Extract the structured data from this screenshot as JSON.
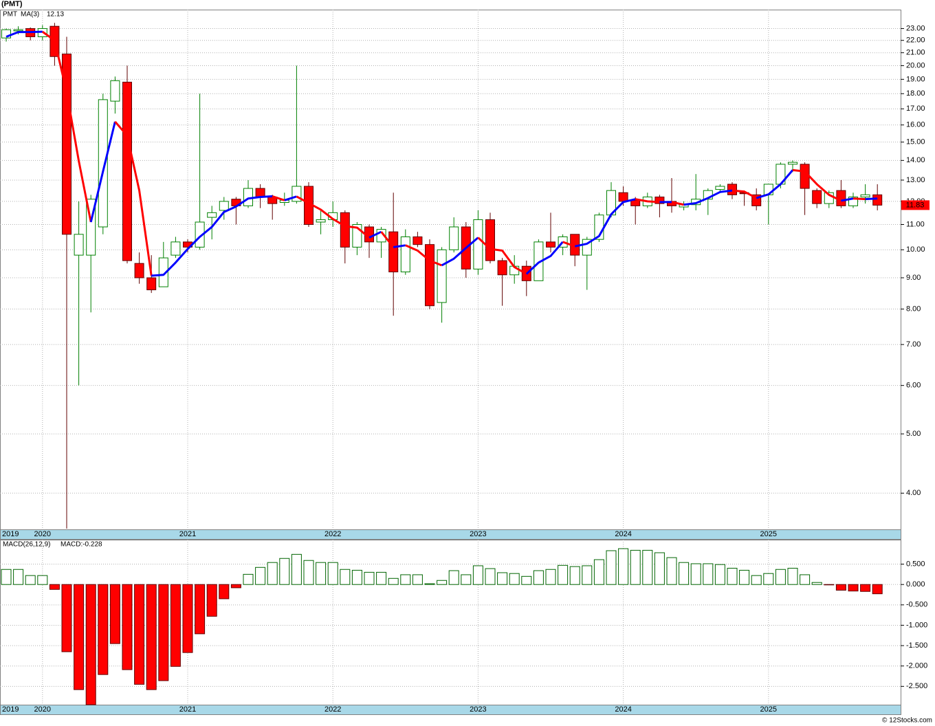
{
  "footer": "© 12Stocks.com",
  "chart_data": [
    {
      "type": "candlestick",
      "title": "(PMT)",
      "name": "PMT",
      "name_color": "#008000",
      "categories": [
        "2019",
        null,
        null,
        "2020",
        null,
        null,
        null,
        null,
        null,
        null,
        null,
        null,
        null,
        null,
        null,
        "2021",
        null,
        null,
        null,
        null,
        null,
        null,
        null,
        null,
        null,
        null,
        null,
        "2022",
        null,
        null,
        null,
        null,
        null,
        null,
        null,
        null,
        null,
        null,
        null,
        "2023",
        null,
        null,
        null,
        null,
        null,
        null,
        null,
        null,
        null,
        null,
        null,
        "2024",
        null,
        null,
        null,
        null,
        null,
        null,
        null,
        null,
        null,
        null,
        null,
        "2025",
        null,
        null,
        null,
        null,
        null,
        null,
        null,
        null,
        null
      ],
      "open": [
        22.2,
        22.8,
        23.0,
        22.3,
        23.2,
        20.9,
        9.8,
        9.8,
        10.9,
        17.5,
        18.8,
        9.5,
        9.0,
        8.7,
        9.8,
        10.3,
        10.1,
        11.3,
        11.6,
        12.1,
        11.8,
        12.6,
        12.2,
        11.95,
        12.0,
        12.7,
        11.1,
        11.2,
        11.5,
        10.1,
        10.9,
        10.3,
        10.7,
        9.2,
        10.5,
        10.2,
        8.2,
        10.0,
        10.9,
        9.3,
        11.2,
        9.6,
        9.1,
        9.4,
        8.9,
        10.3,
        10.1,
        10.6,
        9.8,
        10.4,
        11.4,
        12.4,
        12.05,
        11.8,
        12.2,
        12.0,
        11.75,
        11.85,
        12.1,
        12.55,
        12.8,
        12.4,
        12.3,
        12.3,
        12.8,
        13.8,
        13.8,
        12.5,
        11.9,
        12.5,
        11.8,
        12.2,
        12.3
      ],
      "high": [
        23.0,
        23.2,
        23.1,
        23.3,
        23.5,
        22.3,
        12.0,
        12.3,
        18.0,
        19.2,
        20.0,
        9.9,
        9.8,
        10.3,
        10.5,
        10.4,
        18.0,
        11.8,
        12.2,
        12.2,
        13.0,
        12.8,
        12.3,
        12.4,
        20.0,
        12.9,
        11.6,
        12.0,
        11.6,
        11.1,
        11.0,
        10.9,
        12.4,
        10.8,
        10.7,
        10.4,
        10.1,
        11.3,
        11.1,
        11.6,
        11.5,
        9.7,
        9.8,
        9.6,
        10.4,
        11.5,
        10.6,
        10.6,
        10.5,
        11.5,
        12.9,
        12.7,
        12.2,
        12.4,
        12.3,
        13.1,
        12.0,
        13.3,
        12.6,
        12.8,
        12.9,
        12.5,
        12.6,
        12.8,
        13.9,
        14.0,
        13.9,
        12.6,
        12.5,
        13.0,
        12.4,
        12.8,
        12.8
      ],
      "low": [
        21.9,
        22.5,
        22.0,
        22.0,
        20.0,
        3.5,
        6.0,
        7.9,
        10.6,
        16.7,
        9.5,
        8.8,
        8.5,
        8.7,
        9.7,
        9.9,
        10.0,
        10.4,
        11.2,
        11.0,
        11.7,
        11.7,
        11.2,
        11.8,
        11.9,
        10.9,
        10.6,
        10.9,
        9.5,
        9.8,
        9.7,
        9.7,
        7.8,
        9.1,
        10.1,
        8.0,
        7.6,
        9.9,
        9.0,
        9.1,
        9.5,
        8.1,
        8.8,
        8.4,
        8.9,
        9.9,
        9.8,
        9.4,
        8.6,
        10.3,
        11.3,
        11.8,
        11.0,
        11.7,
        11.3,
        11.5,
        11.6,
        11.6,
        11.4,
        12.4,
        12.1,
        11.8,
        11.6,
        11.0,
        12.6,
        13.4,
        11.4,
        11.7,
        11.7,
        11.7,
        11.7,
        11.9,
        11.6
      ],
      "close": [
        22.9,
        22.9,
        22.3,
        23.0,
        20.7,
        10.6,
        10.6,
        12.1,
        17.6,
        18.9,
        9.6,
        9.0,
        8.6,
        9.7,
        10.3,
        10.1,
        11.1,
        11.5,
        12.0,
        11.8,
        12.6,
        12.2,
        11.9,
        12.05,
        12.7,
        11.0,
        11.2,
        11.5,
        10.1,
        11.0,
        10.3,
        10.8,
        9.2,
        10.5,
        10.2,
        8.1,
        10.0,
        10.9,
        9.3,
        11.2,
        9.6,
        9.1,
        9.4,
        8.9,
        10.3,
        10.1,
        10.5,
        9.8,
        10.4,
        11.4,
        12.5,
        12.0,
        11.8,
        12.2,
        11.9,
        11.8,
        11.85,
        12.1,
        12.5,
        12.7,
        12.3,
        12.35,
        11.8,
        12.8,
        13.8,
        13.9,
        12.6,
        11.9,
        12.4,
        11.8,
        12.2,
        12.3,
        11.83
      ],
      "up_color": "#008000",
      "down_color": "#ff0000",
      "down_edge_color": "#600000",
      "ma": {
        "name": "MA(3)",
        "color": "#0000ff",
        "down_color": "#ff0000",
        "values": [
          22.3,
          22.7,
          22.7,
          22.73,
          22.0,
          18.1,
          13.97,
          11.1,
          13.43,
          16.2,
          15.37,
          12.5,
          9.07,
          9.1,
          9.53,
          10.03,
          10.5,
          10.9,
          11.53,
          11.77,
          12.13,
          12.2,
          12.23,
          12.05,
          12.22,
          11.92,
          11.63,
          11.23,
          10.93,
          10.87,
          10.47,
          10.7,
          10.1,
          10.17,
          9.97,
          9.6,
          9.43,
          9.67,
          10.07,
          10.47,
          10.03,
          9.97,
          9.37,
          9.13,
          9.53,
          9.77,
          10.3,
          10.13,
          10.23,
          10.53,
          11.43,
          11.97,
          12.1,
          12.0,
          11.97,
          11.97,
          11.85,
          11.92,
          12.15,
          12.43,
          12.5,
          12.45,
          12.15,
          12.32,
          12.8,
          13.5,
          13.43,
          12.8,
          12.3,
          12.03,
          12.13,
          12.1,
          12.13
        ]
      },
      "ylim": [
        3.49,
        24.7
      ],
      "log_scale": true,
      "grid": true,
      "last_price_color": "#ff0000",
      "yticks": [
        {
          "value": 4,
          "label": "4.00"
        },
        {
          "value": 5,
          "label": "5.00"
        },
        {
          "value": 6,
          "label": "6.00"
        },
        {
          "value": 7,
          "label": "7.00"
        },
        {
          "value": 8,
          "label": "8.00"
        },
        {
          "value": 9,
          "label": "9.00"
        },
        {
          "value": 10,
          "label": "10.00"
        },
        {
          "value": 11,
          "label": "11.00"
        },
        {
          "value": 12,
          "label": "12.00"
        },
        {
          "value": 13,
          "label": "13.00"
        },
        {
          "value": 14,
          "label": "14.00"
        },
        {
          "value": 15,
          "label": "15.00"
        },
        {
          "value": 16,
          "label": "16.00"
        },
        {
          "value": 17,
          "label": "17.00"
        },
        {
          "value": 18,
          "label": "18.00"
        },
        {
          "value": 19,
          "label": "19.00"
        },
        {
          "value": 20,
          "label": "20.00"
        },
        {
          "value": 21,
          "label": "21.00"
        },
        {
          "value": 22,
          "label": "22.00"
        },
        {
          "value": 23,
          "label": "23.00"
        }
      ]
    },
    {
      "type": "bar",
      "title": "MACD(26,12,9)",
      "annotation": "MACD:-0.228",
      "annotation_color": "#0000ff",
      "categories": [
        "2019",
        null,
        null,
        "2020",
        null,
        null,
        null,
        null,
        null,
        null,
        null,
        null,
        null,
        null,
        null,
        "2021",
        null,
        null,
        null,
        null,
        null,
        null,
        null,
        null,
        null,
        null,
        null,
        "2022",
        null,
        null,
        null,
        null,
        null,
        null,
        null,
        null,
        null,
        null,
        null,
        "2023",
        null,
        null,
        null,
        null,
        null,
        null,
        null,
        null,
        null,
        null,
        null,
        "2024",
        null,
        null,
        null,
        null,
        null,
        null,
        null,
        null,
        null,
        null,
        null,
        "2025",
        null,
        null,
        null,
        null,
        null,
        null,
        null,
        null,
        null
      ],
      "values": [
        0.37,
        0.37,
        0.22,
        0.22,
        -0.12,
        -1.65,
        -2.58,
        -2.95,
        -2.21,
        -1.45,
        -2.09,
        -2.45,
        -2.58,
        -2.36,
        -2.01,
        -1.67,
        -1.21,
        -0.78,
        -0.35,
        -0.08,
        0.25,
        0.42,
        0.54,
        0.64,
        0.74,
        0.59,
        0.54,
        0.54,
        0.37,
        0.35,
        0.3,
        0.3,
        0.15,
        0.24,
        0.24,
        0.02,
        0.1,
        0.34,
        0.24,
        0.46,
        0.39,
        0.29,
        0.27,
        0.2,
        0.34,
        0.37,
        0.47,
        0.44,
        0.46,
        0.61,
        0.83,
        0.88,
        0.84,
        0.84,
        0.78,
        0.66,
        0.54,
        0.51,
        0.51,
        0.49,
        0.4,
        0.35,
        0.22,
        0.27,
        0.37,
        0.4,
        0.24,
        0.05,
        -0.01,
        -0.14,
        -0.16,
        -0.17,
        -0.228
      ],
      "up_color": "#006400",
      "down_color": "#ff0000",
      "down_edge_color": "#600000",
      "ylim": [
        -2.95,
        1.1
      ],
      "grid": true,
      "yticks": [
        {
          "value": 0.5,
          "label": "0.500"
        },
        {
          "value": 0,
          "label": "0.000"
        },
        {
          "value": -0.5,
          "label": "-0.500"
        },
        {
          "value": -1,
          "label": "-1.000"
        },
        {
          "value": -1.5,
          "label": "-1.500"
        },
        {
          "value": -2,
          "label": "-2.000"
        },
        {
          "value": -2.5,
          "label": "-2.500"
        }
      ]
    }
  ]
}
